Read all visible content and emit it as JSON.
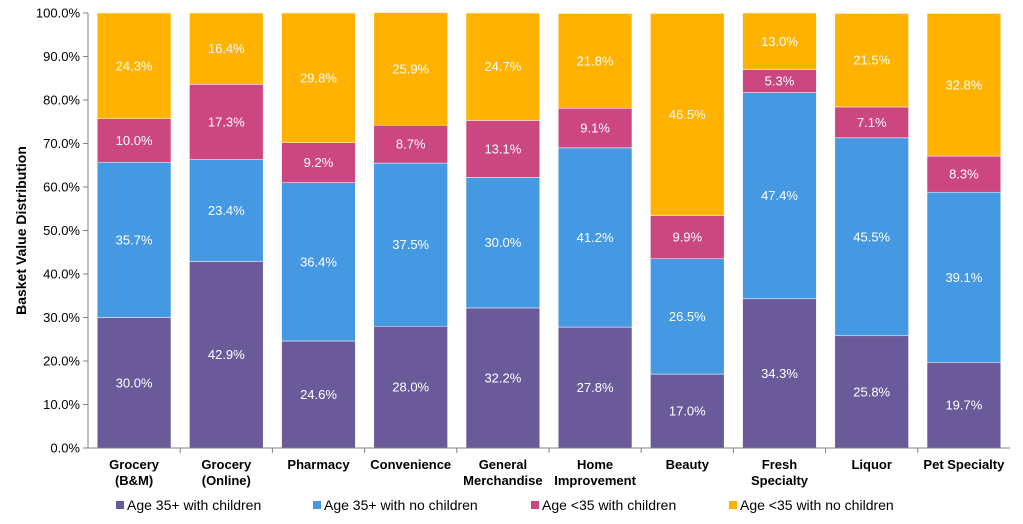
{
  "chart_data": {
    "type": "bar",
    "stacked": true,
    "title": "",
    "xlabel": "",
    "ylabel": "Basket Value Distribution",
    "ylim": [
      0,
      100
    ],
    "y_tick_labels": [
      "0.0%",
      "10.0%",
      "20.0%",
      "30.0%",
      "40.0%",
      "50.0%",
      "60.0%",
      "70.0%",
      "80.0%",
      "90.0%",
      "100.0%"
    ],
    "categories": [
      [
        "Grocery",
        "(B&M)"
      ],
      [
        "Grocery",
        "(Online)"
      ],
      [
        "Pharmacy"
      ],
      [
        "Convenience"
      ],
      [
        "General",
        "Merchandise"
      ],
      [
        "Home",
        "Improvement"
      ],
      [
        "Beauty"
      ],
      [
        "Fresh",
        "Specialty"
      ],
      [
        "Liquor"
      ],
      [
        "Pet Specialty"
      ]
    ],
    "series": [
      {
        "name": "Age 35+ with children",
        "color": "#6a5a9a",
        "values": [
          30.0,
          42.9,
          24.6,
          28.0,
          32.2,
          27.8,
          17.0,
          34.3,
          25.8,
          19.7
        ],
        "labels": [
          "30.0%",
          "42.9%",
          "24.6%",
          "28.0%",
          "32.2%",
          "27.8%",
          "17.0%",
          "34.3%",
          "25.8%",
          "19.7%"
        ]
      },
      {
        "name": "Age 35+ with no children",
        "color": "#4598e2",
        "values": [
          35.7,
          23.4,
          36.4,
          37.5,
          30.0,
          41.2,
          26.5,
          47.4,
          45.5,
          39.1
        ],
        "labels": [
          "35.7%",
          "23.4%",
          "36.4%",
          "37.5%",
          "30.0%",
          "41.2%",
          "26.5%",
          "47.4%",
          "45.5%",
          "39.1%"
        ]
      },
      {
        "name": "Age <35 with children",
        "color": "#cc4680",
        "values": [
          10.0,
          17.3,
          9.2,
          8.7,
          13.1,
          9.1,
          9.9,
          5.3,
          7.1,
          8.3
        ],
        "labels": [
          "10.0%",
          "17.3%",
          "9.2%",
          "8.7%",
          "13.1%",
          "9.1%",
          "9.9%",
          "5.3%",
          "7.1%",
          "8.3%"
        ]
      },
      {
        "name": "Age <35 with no children",
        "color": "#ffb300",
        "values": [
          24.3,
          16.4,
          29.8,
          25.9,
          24.7,
          21.8,
          46.5,
          13.0,
          21.5,
          32.8
        ],
        "labels": [
          "24.3%",
          "16.4%",
          "29.8%",
          "25.9%",
          "24.7%",
          "21.8%",
          "46.5%",
          "13.0%",
          "21.5%",
          "32.8%"
        ]
      }
    ],
    "grid": false,
    "legend_position": "bottom"
  }
}
